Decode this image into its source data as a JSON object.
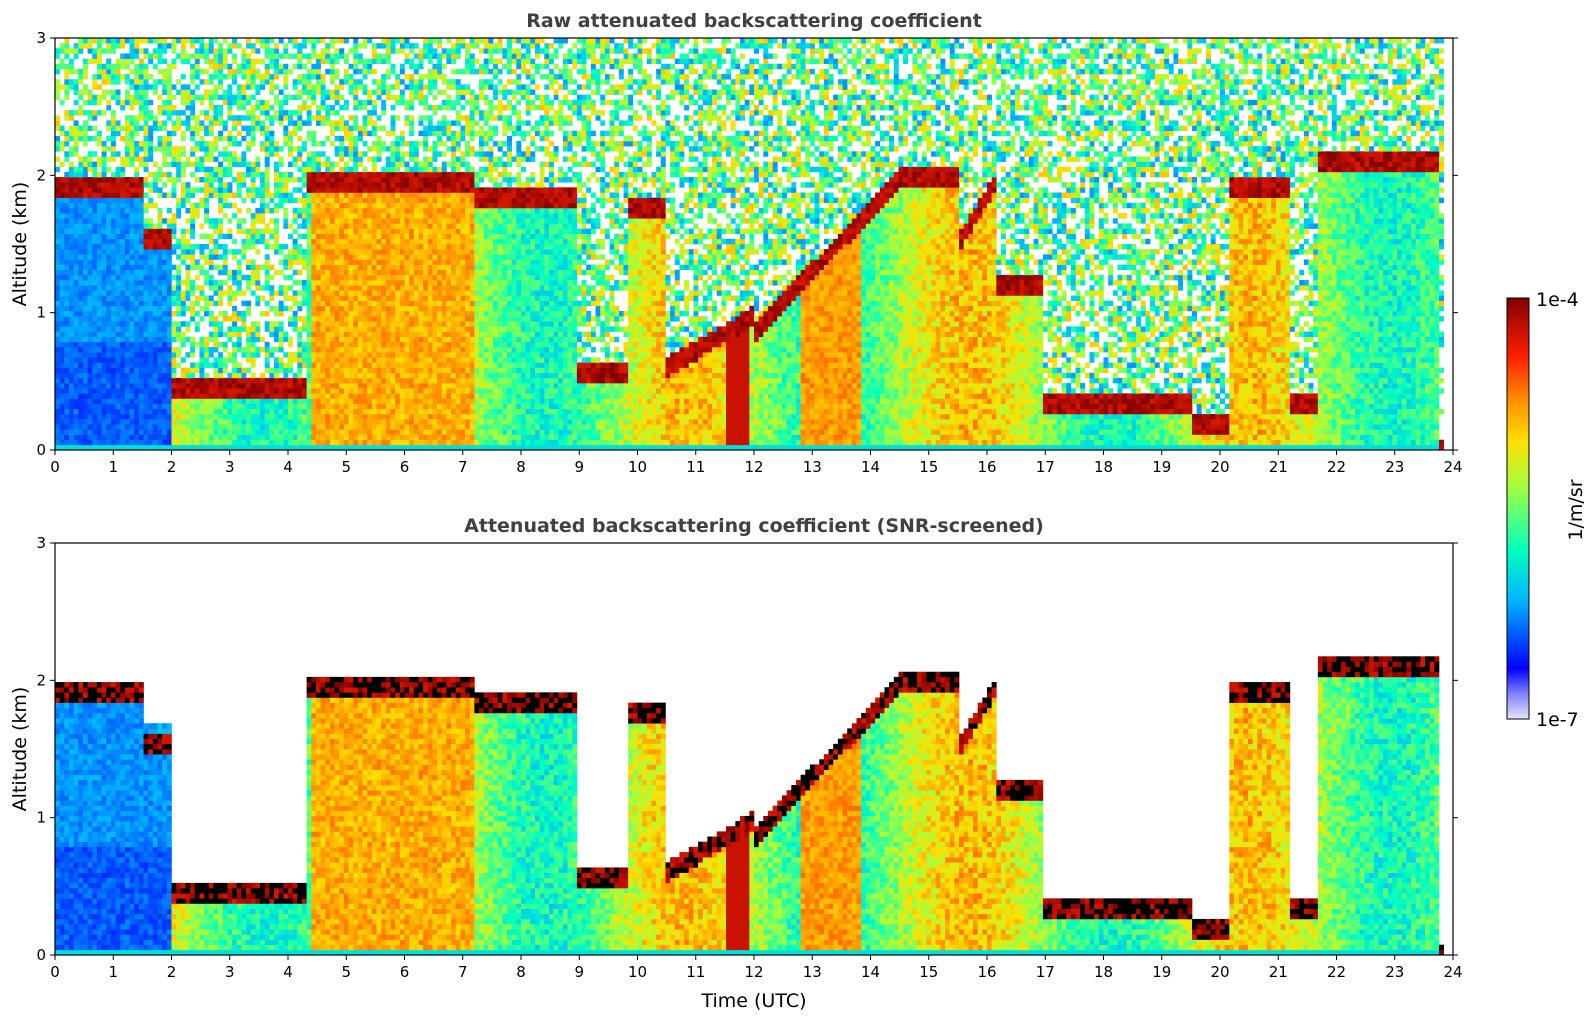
{
  "chart_data": [
    {
      "type": "heatmap",
      "title": "Raw attenuated backscattering coefficient",
      "xlabel": "",
      "ylabel": "Altitude (km)",
      "xlim": [
        0,
        24
      ],
      "ylim": [
        0,
        3
      ],
      "xticks": [
        "0",
        "1",
        "2",
        "3",
        "4",
        "5",
        "6",
        "7",
        "8",
        "9",
        "10",
        "11",
        "12",
        "13",
        "14",
        "15",
        "16",
        "17",
        "18",
        "19",
        "20",
        "21",
        "22",
        "23",
        "24"
      ],
      "yticks": [
        "0",
        "1",
        "2",
        "3"
      ],
      "screened": false
    },
    {
      "type": "heatmap",
      "title": "Attenuated backscattering coefficient (SNR-screened)",
      "xlabel": "Time (UTC)",
      "ylabel": "Altitude (km)",
      "xlim": [
        0,
        24
      ],
      "ylim": [
        0,
        3
      ],
      "xticks": [
        "0",
        "1",
        "2",
        "3",
        "4",
        "5",
        "6",
        "7",
        "8",
        "9",
        "10",
        "11",
        "12",
        "13",
        "14",
        "15",
        "16",
        "17",
        "18",
        "19",
        "20",
        "21",
        "22",
        "23",
        "24"
      ],
      "yticks": [
        "0",
        "1",
        "2",
        "3"
      ],
      "screened": true
    }
  ],
  "colorbar": {
    "label": "1/m/sr",
    "max_label": "1e-4",
    "min_label": "1e-7",
    "scale": "log",
    "colors": [
      "#e6e6fa",
      "#0000ff",
      "#00c8ff",
      "#00ffa0",
      "#c8ff00",
      "#ffd000",
      "#ff7000",
      "#e00000",
      "#800000"
    ]
  }
}
